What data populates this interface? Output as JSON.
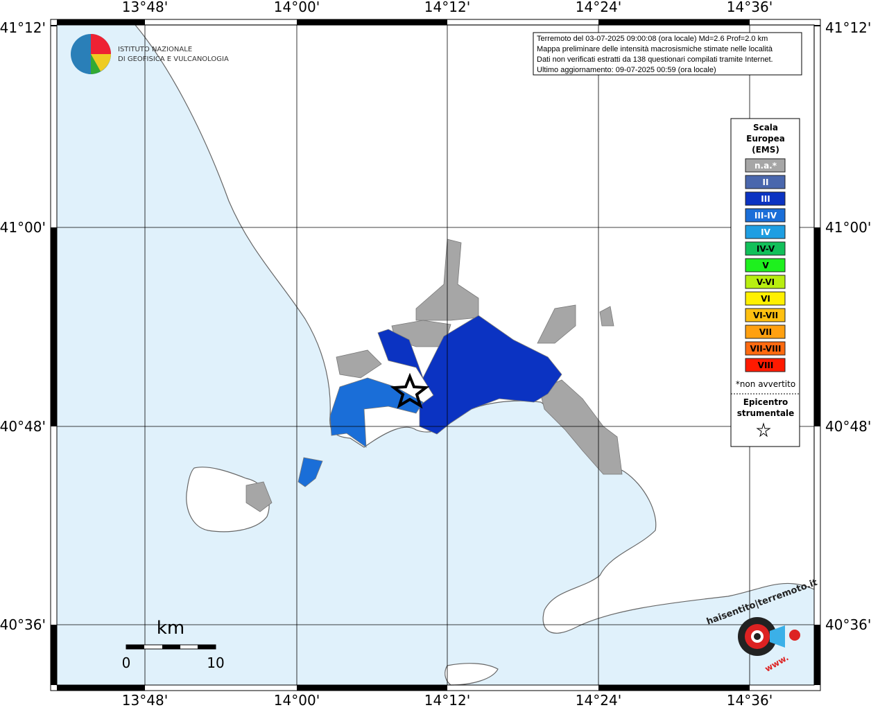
{
  "header": {
    "logo_line1": "ISTITUTO NAZIONALE",
    "logo_line2": "DI GEOFISICA E VULCANOLOGIA"
  },
  "info": {
    "lines": [
      "Terremoto del 03-07-2025 09:00:08 (ora locale) Md=2.6 Prof=2.0 km",
      "Mappa preliminare delle intensità macrosismiche stimate nelle località",
      "Dati non verificati estratti da 138 questionari compilati tramite Internet.",
      "Ultimo aggiornamento: 09-07-2025 00:59 (ora locale)"
    ]
  },
  "map": {
    "lon_ticks": [
      "13°48'",
      "14°00'",
      "14°12'",
      "14°24'",
      "14°36'"
    ],
    "lat_ticks": [
      "41°12'",
      "41°00'",
      "40°48'",
      "40°36'"
    ]
  },
  "legend": {
    "title": [
      "Scala",
      "Europea",
      "(EMS)"
    ],
    "items": [
      {
        "label": "n.a.*",
        "color": "#a6a6a6"
      },
      {
        "label": "II",
        "color": "#4a67ad"
      },
      {
        "label": "III",
        "color": "#0b33c2"
      },
      {
        "label": "III-IV",
        "color": "#1a6ed8"
      },
      {
        "label": "IV",
        "color": "#1e9ee2"
      },
      {
        "label": "IV-V",
        "color": "#12c05a"
      },
      {
        "label": "V",
        "color": "#1ef01e"
      },
      {
        "label": "V-VI",
        "color": "#b8ee10"
      },
      {
        "label": "VI",
        "color": "#fff000"
      },
      {
        "label": "VI-VII",
        "color": "#ffc010"
      },
      {
        "label": "VII",
        "color": "#ffa010"
      },
      {
        "label": "VII-VIII",
        "color": "#ff6a10"
      },
      {
        "label": "VIII",
        "color": "#ff1a00"
      }
    ],
    "note": "*non avvertito",
    "epicenter": [
      "Epicentro",
      "strumentale"
    ]
  },
  "scale_bar": {
    "unit": "km",
    "start": "0",
    "end": "10"
  },
  "watermark": {
    "site": "haisentito|terremoto.it",
    "www": "www."
  }
}
